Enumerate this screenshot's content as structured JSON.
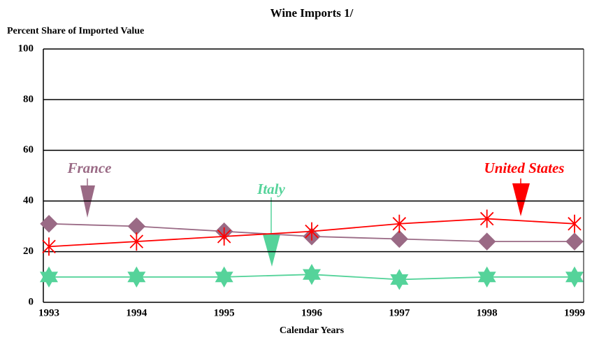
{
  "chart_data": {
    "type": "line",
    "title": "Wine Imports 1/",
    "y_label": "Percent Share of Imported Value",
    "x_label": "Calendar Years",
    "categories": [
      "1993",
      "1994",
      "1995",
      "1996",
      "1997",
      "1998",
      "1999"
    ],
    "series": [
      {
        "name": "France",
        "color": "#9a6a85",
        "marker": "diamond",
        "values": [
          31,
          30,
          28,
          26,
          25,
          24,
          24
        ]
      },
      {
        "name": "United States",
        "color": "#ff0000",
        "marker": "asterisk",
        "values": [
          22,
          24,
          26,
          28,
          31,
          33,
          31
        ]
      },
      {
        "name": "Italy",
        "color": "#55d39a",
        "marker": "star",
        "values": [
          10,
          10,
          10,
          11,
          9,
          10,
          10
        ]
      }
    ],
    "ylim": [
      0,
      100
    ],
    "yticks": [
      0,
      20,
      40,
      60,
      80,
      100
    ],
    "grid": true
  }
}
